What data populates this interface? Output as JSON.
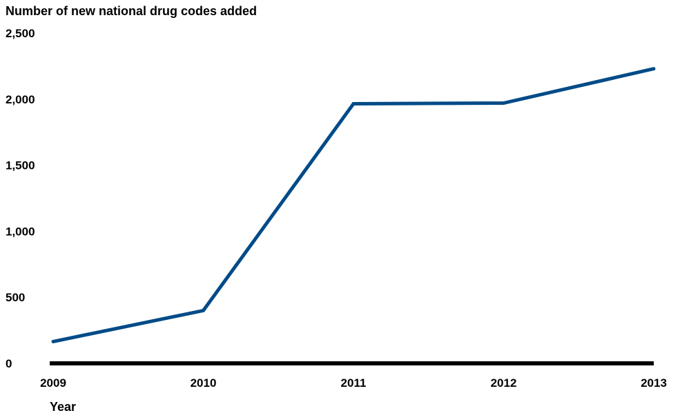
{
  "chart_data": {
    "type": "line",
    "title": "",
    "ylabel": "Number of new national drug codes added",
    "xlabel": "Year",
    "categories": [
      "2009",
      "2010",
      "2011",
      "2012",
      "2013"
    ],
    "series": [
      {
        "values": [
          165,
          400,
          1965,
          1970,
          2230
        ]
      }
    ],
    "ylim": [
      0,
      2500
    ],
    "yticks": [
      0,
      500,
      1000,
      1500,
      2000,
      2500
    ],
    "ytick_labels": [
      "0",
      "500",
      "1,000",
      "1,500",
      "2,000",
      "2,500"
    ],
    "grid": false,
    "legend": "none",
    "colors": {
      "line": "#004b87",
      "axis": "#000000",
      "text": "#000000"
    }
  }
}
